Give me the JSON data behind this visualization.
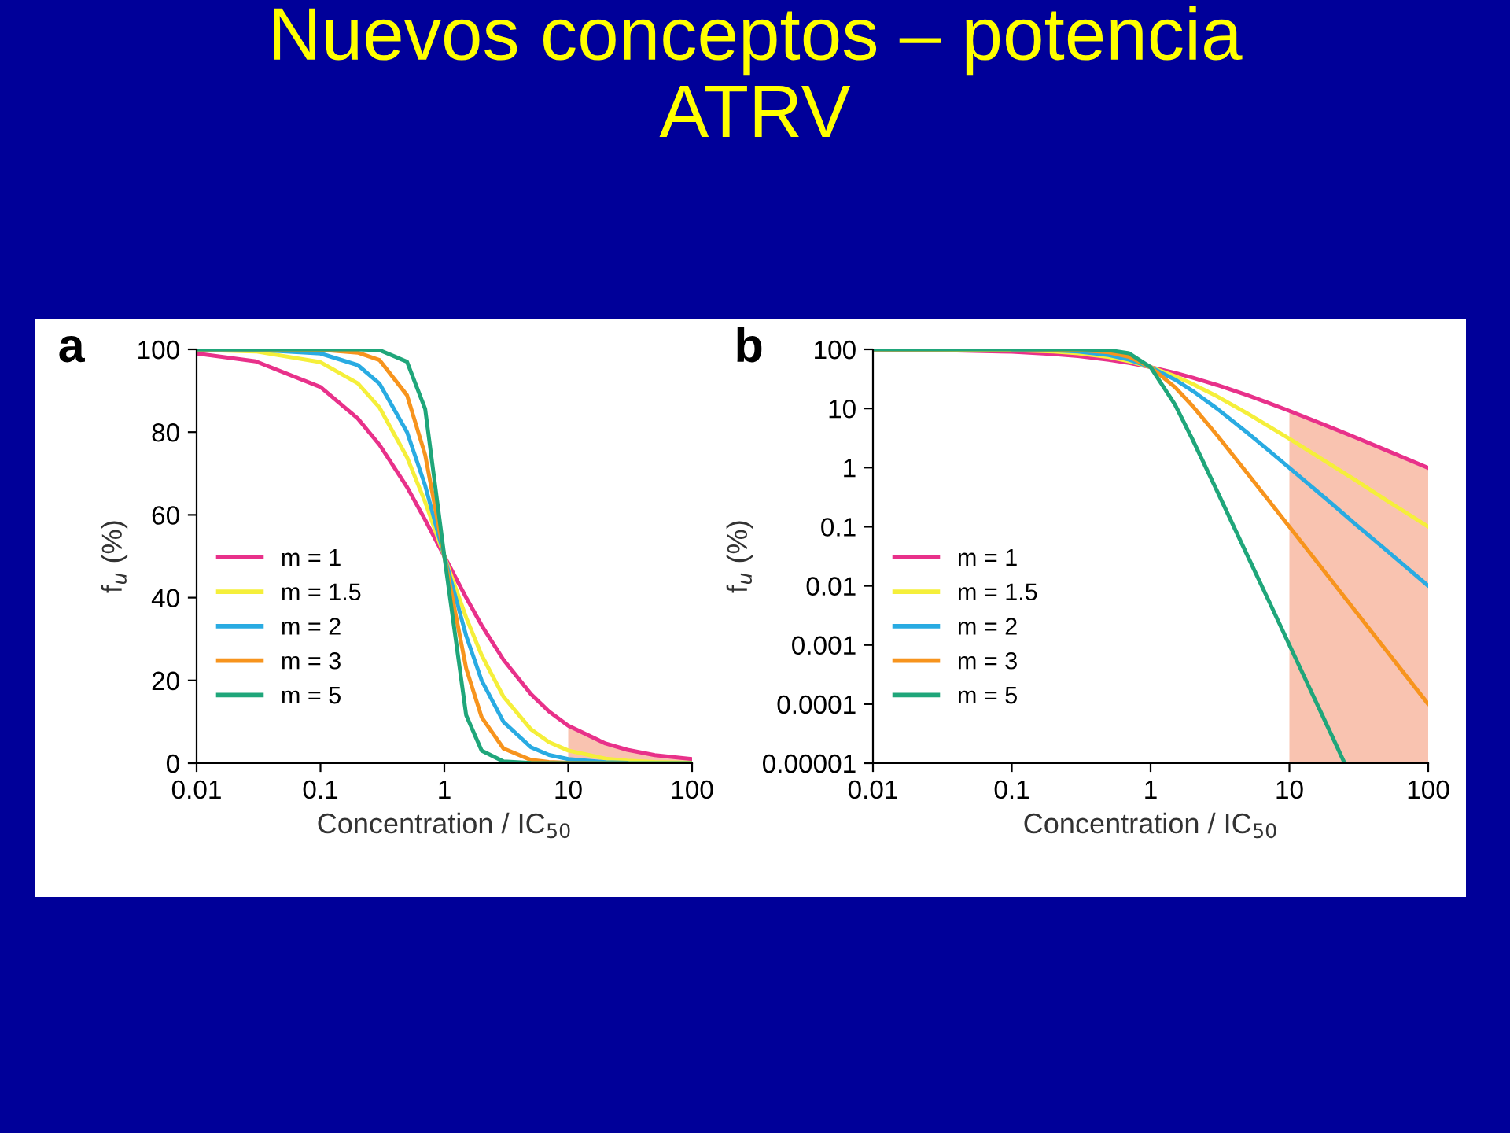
{
  "chart_data": [
    {
      "type": "line",
      "title": "a",
      "annotations": [
        "Nuevos conceptos – potencia\nATRV"
      ],
      "xlabel": "Concentration / IC$_{50}$",
      "ylabel": "f$_{u}$ (%)",
      "log": "x",
      "xlim": [
        0.01,
        100
      ],
      "xticks": [
        0.01,
        0.1,
        1,
        10,
        100
      ],
      "ylim": [
        0,
        100
      ],
      "yticks": [
        0,
        20,
        40,
        60,
        80,
        100
      ],
      "grid": false,
      "legend": "bottom left",
      "x": [
        0.01,
        0.03,
        0.1,
        0.2,
        0.3,
        0.5,
        0.7,
        1,
        1.5,
        2,
        3,
        5,
        7,
        10,
        20,
        30,
        50,
        100
      ],
      "series": [
        {
          "type": "area",
          "color": "#f9c3b0",
          "x": [
            10,
            20,
            30,
            50,
            100
          ],
          "values": [
            9.1,
            4.8,
            3.2,
            2,
            1
          ]
        },
        {
          "name": "m = 1",
          "color": "#e8318a",
          "values": [
            99.0,
            97.1,
            90.9,
            83.3,
            76.9,
            66.7,
            58.8,
            50,
            40,
            33.3,
            25,
            16.7,
            12.5,
            9.09,
            4.76,
            3.23,
            1.96,
            0.99
          ]
        },
        {
          "name": "m = 1.5",
          "color": "#f5ef3a",
          "values": [
            99.9,
            99.5,
            96.9,
            91.8,
            85.9,
            73.9,
            63.1,
            50,
            35.2,
            26.1,
            16.1,
            8.2,
            5.1,
            3.07,
            1.11,
            0.61,
            0.28,
            0.1
          ]
        },
        {
          "name": "m = 2",
          "color": "#29abe2",
          "values": [
            100,
            99.9,
            99.0,
            96.2,
            91.7,
            80,
            67.1,
            50,
            30.8,
            20,
            10,
            3.85,
            2,
            0.99,
            0.25,
            0.11,
            null,
            null
          ]
        },
        {
          "name": "m = 3",
          "color": "#f7941d",
          "values": [
            100,
            100,
            99.9,
            99.2,
            97.4,
            88.9,
            74.5,
            50,
            22.9,
            11.1,
            3.57,
            0.79,
            0.29,
            0.1,
            0.01,
            0,
            null,
            null
          ]
        },
        {
          "name": "m = 5",
          "color": "#1fa67a",
          "values": [
            100,
            100,
            100,
            100,
            99.8,
            97.0,
            85.6,
            50,
            11.6,
            3.03,
            0.41,
            0.03,
            0.01,
            0,
            0,
            0,
            0,
            0
          ]
        }
      ]
    },
    {
      "type": "line",
      "title": "b",
      "xlabel": "Concentration / IC$_{50}$",
      "ylabel": "f$_{u}$ (%)",
      "log": "xy",
      "xlim": [
        0.01,
        100
      ],
      "xticks": [
        0.01,
        0.1,
        1,
        10,
        100
      ],
      "ylim": [
        1e-05,
        100
      ],
      "yticks": [
        {
          "value": 1e-05,
          "label": "0.00001"
        },
        {
          "value": 0.0001,
          "label": "0.0001"
        },
        0.001,
        0.01,
        0.1,
        1,
        10,
        100
      ],
      "grid": false,
      "legend": "bottom left",
      "x": [
        0.01,
        0.03,
        0.1,
        0.2,
        0.3,
        0.5,
        0.7,
        1,
        1.5,
        2,
        3,
        5,
        7,
        10,
        20,
        30,
        50,
        100
      ],
      "series": [
        {
          "type": "area",
          "color": "#f9c3b0",
          "x": [
            10,
            20,
            25,
            30,
            50,
            100
          ],
          "values": [
            9.09,
            4.76,
            3.85,
            3.23,
            1.96,
            0.99
          ]
        },
        {
          "name": "m = 1",
          "color": "#e8318a",
          "values": [
            99.0,
            97.1,
            90.9,
            83.3,
            76.9,
            66.7,
            58.8,
            50,
            40,
            33.3,
            25,
            16.7,
            12.5,
            9.09,
            4.76,
            3.23,
            1.96,
            0.99
          ]
        },
        {
          "name": "m = 1.5",
          "color": "#f5ef3a",
          "values": [
            99.9,
            99.5,
            96.9,
            91.8,
            85.9,
            73.9,
            63.1,
            50,
            35.2,
            26.1,
            16.1,
            8.2,
            5.1,
            3.07,
            1.11,
            0.61,
            0.28,
            0.1
          ]
        },
        {
          "name": "m = 2",
          "color": "#29abe2",
          "values": [
            null,
            null,
            99.0,
            96.2,
            91.7,
            80,
            67.1,
            50,
            30.8,
            20,
            10,
            3.85,
            2,
            0.99,
            0.25,
            0.11,
            0.04,
            0.01
          ]
        },
        {
          "name": "m = 3",
          "color": "#f7941d",
          "values": [
            100,
            100,
            99.9,
            99.2,
            97.4,
            88.9,
            74.5,
            50,
            22.9,
            11.1,
            3.57,
            0.79,
            0.29,
            0.1,
            0.0125,
            0.0037,
            0.0008,
            0.0001
          ]
        },
        {
          "name": "m = 5",
          "color": "#1fa67a",
          "x": [
            0.01,
            0.03,
            0.1,
            0.2,
            0.3,
            0.5,
            0.7,
            1,
            1.5,
            2,
            3,
            5,
            7,
            10,
            20,
            25
          ],
          "values": [
            100,
            100,
            100,
            100,
            99.8,
            97.0,
            85.6,
            50,
            11.6,
            3.03,
            0.41,
            0.032,
            0.006,
            0.001,
            3.1e-05,
            1e-05
          ]
        }
      ]
    }
  ]
}
